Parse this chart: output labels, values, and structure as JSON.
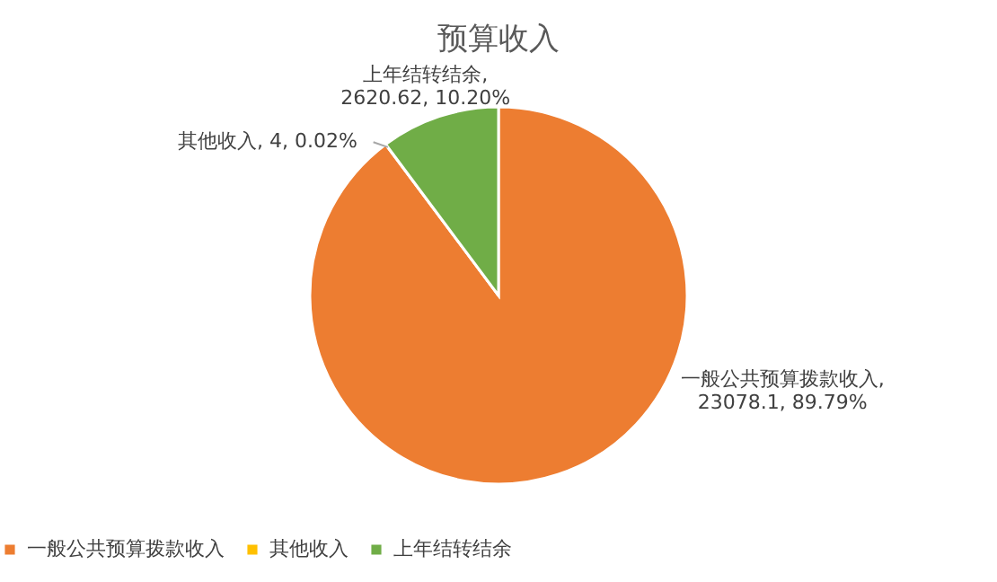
{
  "chart_data": {
    "type": "pie",
    "title": "预算收入",
    "categories": [
      "一般公共预算拨款收入",
      "其他收入",
      "上年结转结余"
    ],
    "values": [
      23078.1,
      4,
      2620.62
    ],
    "colors": [
      "#ed7d31",
      "#ffc000",
      "#70ad47"
    ],
    "value_labels": [
      "一般公共预算拨款收入, 23078.1, 89.79%",
      "其他收入, 4, 0.02%",
      "上年结转结余, 2620.62, 10.20%"
    ],
    "legend": "bottom"
  }
}
